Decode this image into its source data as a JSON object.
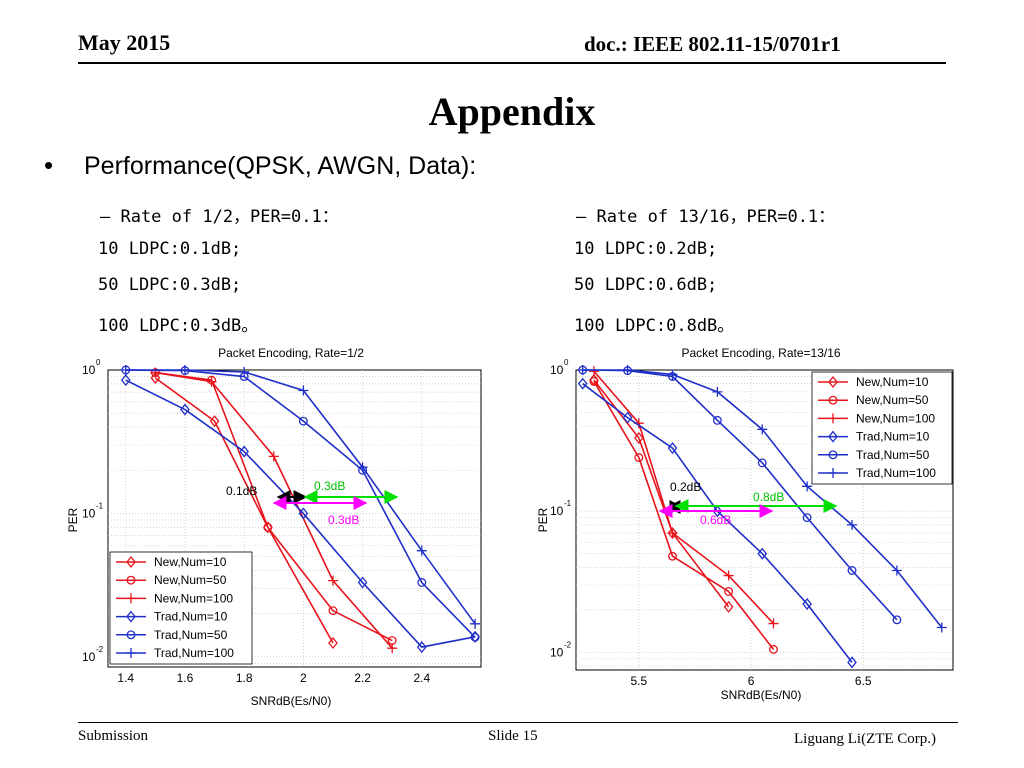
{
  "header": {
    "date": "May 2015",
    "doc": "doc.: IEEE 802.11-15/0701r1"
  },
  "slide_title": "Appendix",
  "bullet": "Performance(QPSK, AWGN, Data):",
  "left_notes": {
    "heading": "– Rate of 1/2，PER=0.1：",
    "lines": [
      "10 LDPC:0.1dB;",
      "50 LDPC:0.3dB;",
      "100 LDPC:0.3dB。"
    ]
  },
  "right_notes": {
    "heading": "– Rate of 13/16，PER=0.1：",
    "lines": [
      "10 LDPC:0.2dB;",
      "50 LDPC:0.6dB;",
      "100 LDPC:0.8dB。"
    ]
  },
  "footer": {
    "left": "Submission",
    "center": "Slide 15",
    "right": "Liguang Li(ZTE Corp.)"
  },
  "colors": {
    "new": "#e8131b",
    "trad": "#1f2fc8",
    "green": "#00e000",
    "magenta": "#ff00ff"
  },
  "chart_data": [
    {
      "type": "line",
      "title": "Packet Encoding, Rate=1/2",
      "xlabel": "SNRdB(Es/N0)",
      "ylabel": "PER",
      "y_scale": "log",
      "xlim": [
        1.34,
        2.6
      ],
      "ylim": [
        0.0085,
        1
      ],
      "xticks": [
        "1.4",
        "1.6",
        "1.8",
        "2",
        "2.2",
        "2.4"
      ],
      "grid": true,
      "legend_position": "bottom-left",
      "series": [
        {
          "name": "New,Num=10",
          "marker": "diamond",
          "x": [
            1.5,
            1.7,
            1.88,
            2.1
          ],
          "y": [
            0.88,
            0.44,
            0.08,
            0.0125
          ]
        },
        {
          "name": "New,Num=50",
          "marker": "circle",
          "x": [
            1.5,
            1.69,
            1.88,
            2.1,
            2.3
          ],
          "y": [
            0.96,
            0.85,
            0.08,
            0.021,
            0.013
          ]
        },
        {
          "name": "New,Num=100",
          "marker": "plus",
          "x": [
            1.5,
            1.69,
            1.9,
            2.1,
            2.3
          ],
          "y": [
            0.96,
            0.83,
            0.25,
            0.034,
            0.0115
          ]
        },
        {
          "name": "Trad,Num=10",
          "marker": "diamond",
          "x": [
            1.4,
            1.6,
            1.8,
            2.0,
            2.2,
            2.4,
            2.58
          ],
          "y": [
            0.85,
            0.53,
            0.27,
            0.1,
            0.033,
            0.0117,
            0.0138
          ]
        },
        {
          "name": "Trad,Num=50",
          "marker": "circle",
          "x": [
            1.4,
            1.6,
            1.8,
            2.0,
            2.2,
            2.4,
            2.58
          ],
          "y": [
            1.0,
            0.99,
            0.9,
            0.44,
            0.2,
            0.033,
            0.0137
          ]
        },
        {
          "name": "Trad,Num=100",
          "marker": "plus",
          "x": [
            1.4,
            1.6,
            1.8,
            2.0,
            2.2,
            2.4,
            2.58
          ],
          "y": [
            1.0,
            1.0,
            0.97,
            0.72,
            0.21,
            0.055,
            0.017
          ]
        }
      ],
      "annotations": [
        "0.1dB",
        "0.3dB",
        "0.3dB"
      ]
    },
    {
      "type": "line",
      "title": "Packet Encoding, Rate=13/16",
      "xlabel": "SNRdB(Es/N0)",
      "ylabel": "PER",
      "y_scale": "log",
      "xlim": [
        5.22,
        6.9
      ],
      "ylim": [
        0.0075,
        1
      ],
      "xticks": [
        "5.5",
        "6",
        "6.5"
      ],
      "grid": true,
      "legend_position": "top-right",
      "series": [
        {
          "name": "New,Num=10",
          "marker": "diamond",
          "x": [
            5.3,
            5.5,
            5.65,
            5.9
          ],
          "y": [
            0.85,
            0.33,
            0.07,
            0.021
          ]
        },
        {
          "name": "New,Num=50",
          "marker": "circle",
          "x": [
            5.3,
            5.5,
            5.65,
            5.9,
            6.1
          ],
          "y": [
            0.83,
            0.24,
            0.048,
            0.027,
            0.0105
          ]
        },
        {
          "name": "New,Num=100",
          "marker": "plus",
          "x": [
            5.3,
            5.5,
            5.65,
            5.9,
            6.1
          ],
          "y": [
            0.98,
            0.42,
            0.07,
            0.035,
            0.016
          ]
        },
        {
          "name": "Trad,Num=10",
          "marker": "diamond",
          "x": [
            5.25,
            5.45,
            5.65,
            5.85,
            6.05,
            6.25,
            6.45
          ],
          "y": [
            0.8,
            0.46,
            0.28,
            0.1,
            0.05,
            0.022,
            0.0085
          ]
        },
        {
          "name": "Trad,Num=50",
          "marker": "circle",
          "x": [
            5.25,
            5.45,
            5.65,
            5.85,
            6.05,
            6.25,
            6.45,
            6.65
          ],
          "y": [
            1.0,
            0.99,
            0.9,
            0.44,
            0.22,
            0.09,
            0.038,
            0.017
          ]
        },
        {
          "name": "Trad,Num=100",
          "marker": "plus",
          "x": [
            5.25,
            5.45,
            5.65,
            5.85,
            6.05,
            6.25,
            6.45,
            6.65,
            6.85
          ],
          "y": [
            1.0,
            1.0,
            0.93,
            0.7,
            0.38,
            0.15,
            0.08,
            0.038,
            0.015
          ]
        }
      ],
      "annotations": [
        "0.2dB",
        "0.8dB",
        "0.6dB"
      ]
    }
  ]
}
